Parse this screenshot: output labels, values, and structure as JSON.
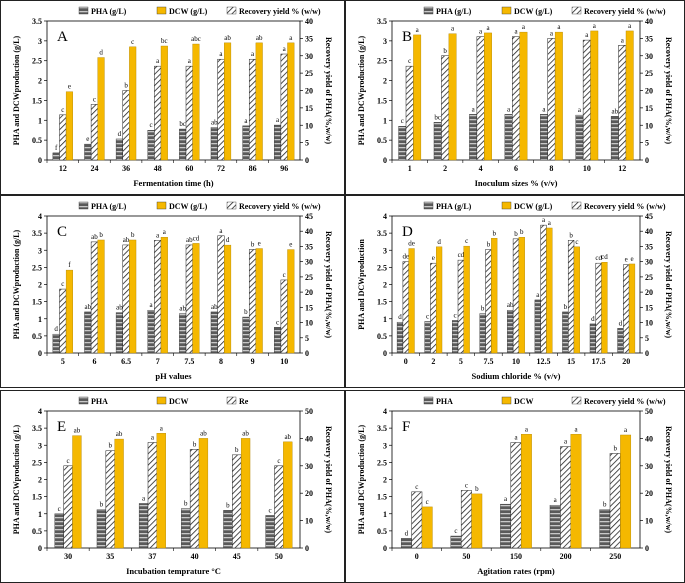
{
  "figure": {
    "panels": [
      {
        "letter": "A",
        "type": "bar",
        "legend": [
          "PHA (g/L)",
          "DCW (g/L)",
          "Recovery yield % (w/w)"
        ],
        "xlabel": "Fermentation time (h)",
        "ylabel": "PHA and DCWproduction (g/L)",
        "y2label": "Recovery yield of PHA(%,w/w)",
        "ylim": [
          0,
          3.5
        ],
        "y2lim": [
          0,
          40
        ],
        "yticks": [
          "0",
          "0.5",
          "1",
          "1.5",
          "2",
          "2.5",
          "3",
          "3.5"
        ],
        "y2ticks": [
          "0",
          "5",
          "10",
          "15",
          "20",
          "25",
          "30",
          "35",
          "40"
        ],
        "categories": [
          "12",
          "24",
          "36",
          "48",
          "60",
          "72",
          "86",
          "96"
        ],
        "series": [
          {
            "name": "PHA",
            "values": [
              0.18,
              0.4,
              0.53,
              0.75,
              0.78,
              0.82,
              0.86,
              0.88
            ],
            "letters": [
              "f",
              "e",
              "d",
              "c",
              "bc",
              "ab",
              "a",
              "a"
            ]
          },
          {
            "name": "DCW",
            "values": [
              1.72,
              2.58,
              2.85,
              2.87,
              2.92,
              2.95,
              2.95,
              2.95
            ],
            "letters": [
              "e",
              "d",
              "c",
              "bc",
              "abc",
              "ab",
              "ab",
              "a"
            ]
          },
          {
            "name": "Recovery yield",
            "values": [
              13,
              16,
              20,
              27,
              27,
              29,
              29,
              30.5
            ],
            "letters": [
              "c",
              "c",
              "b",
              "a",
              "a",
              "a",
              "a",
              "a"
            ]
          }
        ]
      },
      {
        "letter": "B",
        "type": "bar",
        "legend": [
          "PHA (g/L)",
          "DCW (g/L)",
          "Recovery yield % (w/w)"
        ],
        "xlabel": "Inoculum sizes % (v/v)",
        "ylabel": "PHA and DCWproduction (g/L)",
        "y2label": "Recovery yield of PHA(%,w/w)",
        "ylim": [
          0,
          3.5
        ],
        "y2lim": [
          0,
          40
        ],
        "yticks": [
          "0",
          "0.5",
          "1",
          "1.5",
          "2",
          "2.5",
          "3",
          "3.5"
        ],
        "y2ticks": [
          "0",
          "5",
          "10",
          "15",
          "20",
          "25",
          "30",
          "35",
          "40"
        ],
        "categories": [
          "1",
          "2",
          "4",
          "6",
          "8",
          "10",
          "12"
        ],
        "series": [
          {
            "name": "PHA",
            "values": [
              0.85,
              0.95,
              1.15,
              1.15,
              1.15,
              1.13,
              1.1
            ],
            "letters": [
              "c",
              "bc",
              "a",
              "a",
              "a",
              "a",
              "ab"
            ]
          },
          {
            "name": "DCW",
            "values": [
              3.15,
              3.18,
              3.2,
              3.22,
              3.22,
              3.25,
              3.25
            ],
            "letters": [
              "a",
              "a",
              "a",
              "a",
              "a",
              "a",
              "a"
            ]
          },
          {
            "name": "Recovery yield",
            "values": [
              27,
              30,
              35.5,
              35.5,
              35,
              34.5,
              33
            ],
            "letters": [
              "c",
              "b",
              "a",
              "a",
              "a",
              "a",
              "a"
            ]
          }
        ]
      },
      {
        "letter": "C",
        "type": "bar",
        "legend": [
          "PHA (g/L)",
          "DCW (g/L)",
          "Recovery yield % (w/w)"
        ],
        "xlabel": "pH values",
        "ylabel": "PHA and DCWproduction (g/L)",
        "y2label": "Recovery yield of PHA(%,w/w)",
        "ylim": [
          0,
          4
        ],
        "y2lim": [
          0,
          45
        ],
        "yticks": [
          "0",
          "0.5",
          "1",
          "1.5",
          "2",
          "2.5",
          "3",
          "3.5",
          "4"
        ],
        "y2ticks": [
          "0",
          "5",
          "10",
          "15",
          "20",
          "25",
          "30",
          "35",
          "40",
          "45"
        ],
        "categories": [
          "5",
          "6",
          "6.5",
          "7",
          "7.5",
          "8",
          "9",
          "10"
        ],
        "series": [
          {
            "name": "PHA",
            "values": [
              0.55,
              1.2,
              1.18,
              1.25,
              1.15,
              1.2,
              1.05,
              0.75
            ],
            "letters": [
              "d",
              "ab",
              "ab",
              "a",
              "ab",
              "ab",
              "b",
              "c"
            ]
          },
          {
            "name": "DCW",
            "values": [
              2.42,
              3.3,
              3.3,
              3.38,
              3.2,
              3.15,
              3.05,
              3.02
            ],
            "letters": [
              "f",
              "b",
              "b",
              "a",
              "cd",
              "d",
              "e",
              "e"
            ]
          },
          {
            "name": "Recovery yield",
            "values": [
              21,
              36.5,
              35.5,
              37,
              35.5,
              38.5,
              34,
              24
            ],
            "letters": [
              "c",
              "ab",
              "ab",
              "a",
              "ab",
              "a",
              "b",
              "c"
            ]
          }
        ]
      },
      {
        "letter": "D",
        "type": "bar",
        "legend": [
          "PHA (g/L)",
          "DCW (g/L)",
          "Recovery yield % (w/w)"
        ],
        "xlabel": "Sodium chloride % (v/v)",
        "ylabel": "PHA and DCWproduction",
        "y2label": "Recovery yield of PHA(%,w/w)",
        "ylim": [
          0,
          4
        ],
        "y2lim": [
          0,
          45
        ],
        "yticks": [
          "0",
          "0.5",
          "1",
          "1.5",
          "2",
          "2.5",
          "3",
          "3.5",
          "4"
        ],
        "y2ticks": [
          "0",
          "5",
          "10",
          "15",
          "20",
          "25",
          "30",
          "35",
          "40",
          "45"
        ],
        "categories": [
          "0",
          "2",
          "5",
          "7.5",
          "10",
          "12.5",
          "15",
          "17.5",
          "20"
        ],
        "series": [
          {
            "name": "PHA",
            "values": [
              0.9,
              0.92,
              0.95,
              1.15,
              1.25,
              1.55,
              1.2,
              0.85,
              0.72
            ],
            "letters": [
              "d",
              "c",
              "c",
              "b",
              "ab",
              "a",
              "b",
              "d",
              "d"
            ]
          },
          {
            "name": "DCW",
            "values": [
              3.05,
              3.1,
              3.12,
              3.35,
              3.38,
              3.65,
              3.1,
              2.65,
              2.6
            ],
            "letters": [
              "de",
              "d",
              "c",
              "b",
              "b",
              "a",
              "c",
              "cd",
              "e"
            ]
          },
          {
            "name": "Recovery yield",
            "values": [
              30,
              29.5,
              30.5,
              34,
              37.5,
              42,
              37,
              29.5,
              29
            ],
            "letters": [
              "de",
              "e",
              "cd",
              "b",
              "b",
              "a",
              "b",
              "cd",
              "e"
            ]
          }
        ]
      },
      {
        "letter": "E",
        "type": "bar",
        "legend": [
          "PHA",
          "DCW",
          "Re"
        ],
        "xlabel": "Incubation temprature °C",
        "ylabel": "PHA and DCWproduction (g/L)",
        "y2label": "Recovery yield of PHA(%,w/w)",
        "ylim": [
          0,
          4
        ],
        "y2lim": [
          0,
          50
        ],
        "yticks": [
          "0",
          "0.5",
          "1",
          "1.5",
          "2",
          "2.5",
          "3",
          "3.5",
          "4"
        ],
        "y2ticks": [
          "0",
          "10",
          "20",
          "30",
          "40",
          "50"
        ],
        "categories": [
          "30",
          "35",
          "37",
          "40",
          "45",
          "50"
        ],
        "series": [
          {
            "name": "PHA",
            "values": [
              1.0,
              1.12,
              1.3,
              1.15,
              1.1,
              0.95
            ],
            "letters": [
              "c",
              "b",
              "a",
              "b",
              "b",
              "c"
            ]
          },
          {
            "name": "DCW",
            "values": [
              3.28,
              3.18,
              3.35,
              3.2,
              3.2,
              3.1
            ],
            "letters": [
              "ab",
              "ab",
              "a",
              "ab",
              "ab",
              "ab"
            ]
          },
          {
            "name": "Recovery yield",
            "values": [
              30,
              35.5,
              38.5,
              36,
              34,
              30
            ],
            "letters": [
              "c",
              "b",
              "a",
              "b",
              "b",
              "c"
            ]
          }
        ]
      },
      {
        "letter": "F",
        "type": "bar",
        "legend": [
          "PHA",
          "DCW",
          "Recovery yield % (w/w)"
        ],
        "xlabel": "Agitation rates (rpm)",
        "ylabel": "PHA and DCWproduction (g/L)",
        "y2label": "Recovery yield of PHA(%,w/w)",
        "ylim": [
          0,
          4
        ],
        "y2lim": [
          0,
          50
        ],
        "yticks": [
          "0",
          "0.5",
          "1",
          "1.5",
          "2",
          "2.5",
          "3",
          "3.5",
          "4"
        ],
        "y2ticks": [
          "0",
          "10",
          "20",
          "30",
          "40",
          "50"
        ],
        "categories": [
          "0",
          "50",
          "150",
          "200",
          "250"
        ],
        "series": [
          {
            "name": "PHA",
            "values": [
              0.28,
              0.35,
              1.28,
              1.25,
              1.12
            ],
            "letters": [
              "d",
              "c",
              "a",
              "a",
              "b"
            ]
          },
          {
            "name": "DCW",
            "values": [
              1.2,
              1.58,
              3.32,
              3.32,
              3.3
            ],
            "letters": [
              "c",
              "b",
              "a",
              "a",
              "a"
            ]
          },
          {
            "name": "Recovery yield",
            "values": [
              20.5,
              21,
              38.5,
              37,
              34.5
            ],
            "letters": [
              "c",
              "c",
              "a",
              "a",
              "b"
            ]
          }
        ]
      }
    ]
  },
  "chart_data": [
    {
      "type": "bar",
      "title": "A",
      "xlabel": "Fermentation time (h)",
      "ylabel": "PHA and DCWproduction (g/L)",
      "y2label": "Recovery yield of PHA(%,w/w)",
      "categories": [
        "12",
        "24",
        "36",
        "48",
        "60",
        "72",
        "86",
        "96"
      ],
      "ylim": [
        0,
        3.5
      ],
      "y2lim": [
        0,
        40
      ],
      "series": [
        {
          "name": "PHA (g/L)",
          "values": [
            0.18,
            0.4,
            0.53,
            0.75,
            0.78,
            0.82,
            0.86,
            0.88
          ]
        },
        {
          "name": "DCW (g/L)",
          "values": [
            1.72,
            2.58,
            2.85,
            2.87,
            2.92,
            2.95,
            2.95,
            2.95
          ]
        },
        {
          "name": "Recovery yield % (w/w)",
          "axis": "right",
          "values": [
            13,
            16,
            20,
            27,
            27,
            29,
            29,
            30.5
          ]
        }
      ]
    },
    {
      "type": "bar",
      "title": "B",
      "xlabel": "Inoculum sizes % (v/v)",
      "ylabel": "PHA and DCWproduction (g/L)",
      "y2label": "Recovery yield of PHA(%,w/w)",
      "categories": [
        "1",
        "2",
        "4",
        "6",
        "8",
        "10",
        "12"
      ],
      "ylim": [
        0,
        3.5
      ],
      "y2lim": [
        0,
        40
      ],
      "series": [
        {
          "name": "PHA (g/L)",
          "values": [
            0.85,
            0.95,
            1.15,
            1.15,
            1.15,
            1.13,
            1.1
          ]
        },
        {
          "name": "DCW (g/L)",
          "values": [
            3.15,
            3.18,
            3.2,
            3.22,
            3.22,
            3.25,
            3.25
          ]
        },
        {
          "name": "Recovery yield % (w/w)",
          "axis": "right",
          "values": [
            27,
            30,
            35.5,
            35.5,
            35,
            34.5,
            33
          ]
        }
      ]
    },
    {
      "type": "bar",
      "title": "C",
      "xlabel": "pH values",
      "ylabel": "PHA and DCWproduction (g/L)",
      "y2label": "Recovery yield of PHA(%,w/w)",
      "categories": [
        "5",
        "6",
        "6.5",
        "7",
        "7.5",
        "8",
        "9",
        "10"
      ],
      "ylim": [
        0,
        4
      ],
      "y2lim": [
        0,
        45
      ],
      "series": [
        {
          "name": "PHA (g/L)",
          "values": [
            0.55,
            1.2,
            1.18,
            1.25,
            1.15,
            1.2,
            1.05,
            0.75
          ]
        },
        {
          "name": "DCW (g/L)",
          "values": [
            2.42,
            3.3,
            3.3,
            3.38,
            3.2,
            3.15,
            3.05,
            3.02
          ]
        },
        {
          "name": "Recovery yield % (w/w)",
          "axis": "right",
          "values": [
            21,
            36.5,
            35.5,
            37,
            35.5,
            38.5,
            34,
            24
          ]
        }
      ]
    },
    {
      "type": "bar",
      "title": "D",
      "xlabel": "Sodium chloride % (v/v)",
      "ylabel": "PHA and DCWproduction",
      "y2label": "Recovery yield of PHA(%,w/w)",
      "categories": [
        "0",
        "2",
        "5",
        "7.5",
        "10",
        "12.5",
        "15",
        "17.5",
        "20"
      ],
      "ylim": [
        0,
        4
      ],
      "y2lim": [
        0,
        45
      ],
      "series": [
        {
          "name": "PHA (g/L)",
          "values": [
            0.9,
            0.92,
            0.95,
            1.15,
            1.25,
            1.55,
            1.2,
            0.85,
            0.72
          ]
        },
        {
          "name": "DCW (g/L)",
          "values": [
            3.05,
            3.1,
            3.12,
            3.35,
            3.38,
            3.65,
            3.1,
            2.65,
            2.6
          ]
        },
        {
          "name": "Recovery yield % (w/w)",
          "axis": "right",
          "values": [
            30,
            29.5,
            30.5,
            34,
            37.5,
            42,
            37,
            29.5,
            29
          ]
        }
      ]
    },
    {
      "type": "bar",
      "title": "E",
      "xlabel": "Incubation temprature °C",
      "ylabel": "PHA and DCWproduction (g/L)",
      "y2label": "Recovery yield of PHA(%,w/w)",
      "categories": [
        "30",
        "35",
        "37",
        "40",
        "45",
        "50"
      ],
      "ylim": [
        0,
        4
      ],
      "y2lim": [
        0,
        50
      ],
      "series": [
        {
          "name": "PHA",
          "values": [
            1.0,
            1.12,
            1.3,
            1.15,
            1.1,
            0.95
          ]
        },
        {
          "name": "DCW",
          "values": [
            3.28,
            3.18,
            3.35,
            3.2,
            3.2,
            3.1
          ]
        },
        {
          "name": "Re",
          "axis": "right",
          "values": [
            30,
            35.5,
            38.5,
            36,
            34,
            30
          ]
        }
      ]
    },
    {
      "type": "bar",
      "title": "F",
      "xlabel": "Agitation rates (rpm)",
      "ylabel": "PHA and DCWproduction (g/L)",
      "y2label": "Recovery yield of PHA(%,w/w)",
      "categories": [
        "0",
        "50",
        "150",
        "200",
        "250"
      ],
      "ylim": [
        0,
        4
      ],
      "y2lim": [
        0,
        50
      ],
      "series": [
        {
          "name": "PHA",
          "values": [
            0.28,
            0.35,
            1.28,
            1.25,
            1.12
          ]
        },
        {
          "name": "DCW",
          "values": [
            1.2,
            1.58,
            3.32,
            3.32,
            3.3
          ]
        },
        {
          "name": "Recovery yield % (w/w)",
          "axis": "right",
          "values": [
            20.5,
            21,
            38.5,
            37,
            34.5
          ]
        }
      ]
    }
  ],
  "colors": {
    "pha": "#777777",
    "dcw": "#f5b800",
    "recovery": "#ffffff",
    "axis": "#000000",
    "letter": "#000000"
  },
  "icons": {
    "pha_legend": "striped-swatch-icon",
    "dcw_legend": "solid-swatch-icon",
    "recovery_legend": "hatched-swatch-icon"
  }
}
